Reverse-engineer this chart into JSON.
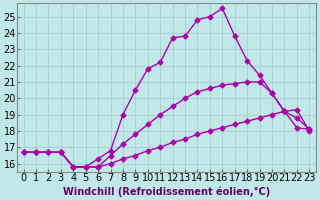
{
  "xlabel": "Windchill (Refroidissement éolien,°C)",
  "bg_color": "#c0e8e8",
  "line_color": "#aa00aa",
  "grid_color": "#aacccc",
  "xlim": [
    -0.5,
    23.5
  ],
  "ylim": [
    15.5,
    25.8
  ],
  "xticks": [
    0,
    1,
    2,
    3,
    4,
    5,
    6,
    7,
    8,
    9,
    10,
    11,
    12,
    13,
    14,
    15,
    16,
    17,
    18,
    19,
    20,
    21,
    22,
    23
  ],
  "yticks": [
    16,
    17,
    18,
    19,
    20,
    21,
    22,
    23,
    24,
    25
  ],
  "line1_x": [
    0,
    1,
    2,
    3,
    4,
    5,
    6,
    7,
    8,
    9,
    10,
    11,
    12,
    13,
    14,
    15,
    16,
    17,
    18,
    19,
    20,
    21,
    22,
    23
  ],
  "line1_y": [
    16.7,
    16.7,
    16.7,
    16.7,
    15.8,
    15.8,
    15.8,
    16.0,
    16.3,
    16.5,
    16.8,
    17.0,
    17.3,
    17.5,
    17.8,
    18.0,
    18.2,
    18.4,
    18.6,
    18.8,
    19.0,
    19.2,
    19.3,
    18.0
  ],
  "line2_x": [
    0,
    1,
    2,
    3,
    4,
    5,
    6,
    7,
    8,
    9,
    10,
    11,
    12,
    13,
    14,
    15,
    16,
    17,
    18,
    19,
    20,
    21,
    22,
    23
  ],
  "line2_y": [
    16.7,
    16.7,
    16.7,
    16.7,
    15.8,
    15.8,
    15.8,
    16.5,
    17.2,
    17.8,
    18.4,
    19.0,
    19.5,
    20.0,
    20.4,
    20.6,
    20.8,
    20.9,
    21.0,
    21.0,
    20.3,
    19.2,
    18.8,
    18.1
  ],
  "line3_x": [
    0,
    1,
    2,
    3,
    4,
    5,
    6,
    7,
    8,
    9,
    10,
    11,
    12,
    13,
    14,
    15,
    16,
    17,
    18,
    19,
    20,
    21,
    22,
    23
  ],
  "line3_y": [
    16.7,
    16.7,
    16.7,
    16.7,
    15.8,
    15.8,
    16.3,
    16.8,
    19.0,
    20.5,
    21.8,
    22.2,
    23.7,
    23.8,
    24.8,
    25.0,
    25.5,
    23.8,
    22.3,
    21.4,
    20.3,
    19.2,
    18.2,
    18.1
  ],
  "marker": "D",
  "markersize": 2.5,
  "linewidth": 1.0,
  "fontsize_xlabel": 7,
  "fontsize_ticks": 7
}
